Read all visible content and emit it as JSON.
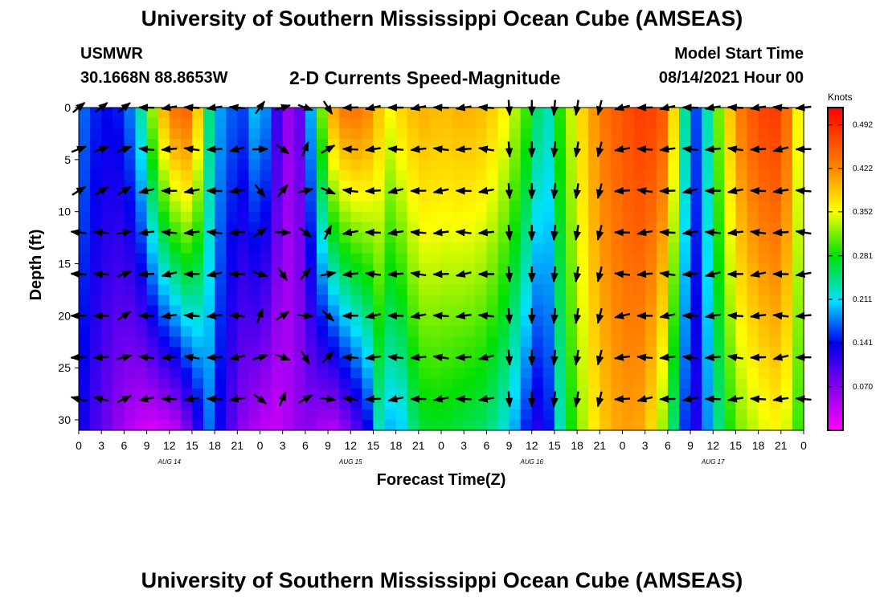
{
  "header": {
    "title": "University of Southern Mississippi Ocean Cube (AMSEAS)",
    "station": "USMWR",
    "coordinates": "30.1668N  88.8653W",
    "plot_title": "2-D Currents Speed-Magnitude",
    "model_start_label": "Model Start Time",
    "model_start_value": "08/14/2021 Hour 00"
  },
  "footer": {
    "title": "University of Southern Mississippi Ocean Cube (AMSEAS)"
  },
  "chart_data": {
    "type": "heatmap",
    "title": "2-D Currents Speed-Magnitude",
    "xlabel": "Forecast Time(Z)",
    "ylabel": "Depth (ft)",
    "x_hours": [
      0,
      96
    ],
    "ylim": [
      0,
      31
    ],
    "x_tick_labels": [
      "0",
      "3",
      "6",
      "9",
      "12",
      "15",
      "18",
      "21",
      "0",
      "3",
      "6",
      "9",
      "12",
      "15",
      "18",
      "21",
      "0",
      "3",
      "6",
      "9",
      "12",
      "15",
      "18",
      "21",
      "0",
      "3",
      "6",
      "9",
      "12",
      "15",
      "18",
      "21",
      "0"
    ],
    "y_ticks": [
      0,
      5,
      10,
      15,
      20,
      25,
      30
    ],
    "day_labels": [
      {
        "label": "AUG 14",
        "hour": 12
      },
      {
        "label": "AUG 15",
        "hour": 36
      },
      {
        "label": "AUG 16",
        "hour": 60
      },
      {
        "label": "AUG 17",
        "hour": 84
      }
    ],
    "colorbar": {
      "unit": "Knots",
      "min": 0.0,
      "max": 0.52,
      "ticks": [
        "0.492",
        "0.422",
        "0.352",
        "0.281",
        "0.211",
        "0.141",
        "0.070"
      ],
      "tick_values": [
        0.492,
        0.422,
        0.352,
        0.281,
        0.211,
        0.141,
        0.07
      ]
    },
    "speed_profile": {
      "hours": [
        0,
        3,
        6,
        8,
        10,
        12,
        13,
        15,
        16,
        17,
        18,
        20,
        22,
        24,
        26,
        28,
        29,
        30,
        32,
        34,
        36,
        38,
        40,
        41,
        42,
        43,
        44,
        46,
        48,
        51,
        54,
        57,
        60,
        61,
        62,
        63,
        64,
        66,
        69,
        72,
        75,
        78,
        80,
        82,
        84,
        87,
        90,
        93,
        95,
        96
      ],
      "surface": [
        0.18,
        0.14,
        0.15,
        0.22,
        0.34,
        0.43,
        0.44,
        0.45,
        0.36,
        0.26,
        0.2,
        0.17,
        0.16,
        0.22,
        0.12,
        0.05,
        0.07,
        0.13,
        0.3,
        0.42,
        0.44,
        0.43,
        0.38,
        0.35,
        0.37,
        0.38,
        0.39,
        0.4,
        0.39,
        0.4,
        0.39,
        0.35,
        0.28,
        0.24,
        0.22,
        0.26,
        0.3,
        0.36,
        0.43,
        0.46,
        0.48,
        0.45,
        0.25,
        0.15,
        0.28,
        0.42,
        0.47,
        0.48,
        0.38,
        0.3
      ],
      "bottom": [
        0.14,
        0.09,
        0.05,
        0.03,
        0.02,
        0.03,
        0.04,
        0.09,
        0.13,
        0.18,
        0.15,
        0.1,
        0.06,
        0.04,
        0.03,
        0.05,
        0.06,
        0.07,
        0.05,
        0.04,
        0.08,
        0.12,
        0.24,
        0.2,
        0.18,
        0.21,
        0.24,
        0.27,
        0.27,
        0.26,
        0.25,
        0.21,
        0.13,
        0.12,
        0.13,
        0.19,
        0.24,
        0.31,
        0.38,
        0.41,
        0.4,
        0.3,
        0.16,
        0.12,
        0.22,
        0.31,
        0.34,
        0.36,
        0.31,
        0.26
      ]
    },
    "current_vectors": {
      "depths_ft": [
        0,
        4,
        8,
        12,
        16,
        20,
        24,
        28
      ],
      "times_h": [
        0,
        3,
        6,
        9,
        12,
        15,
        18,
        21,
        24,
        27,
        30,
        33,
        36,
        39,
        42,
        45,
        48,
        51,
        54,
        57,
        60,
        63,
        66,
        69,
        72,
        75,
        78,
        81,
        84,
        87,
        90,
        93,
        96
      ],
      "note": "arrows shown at 0-30 ft in 4 ft steps; flow mostly westward, southward near Aug 16 15Z"
    }
  }
}
